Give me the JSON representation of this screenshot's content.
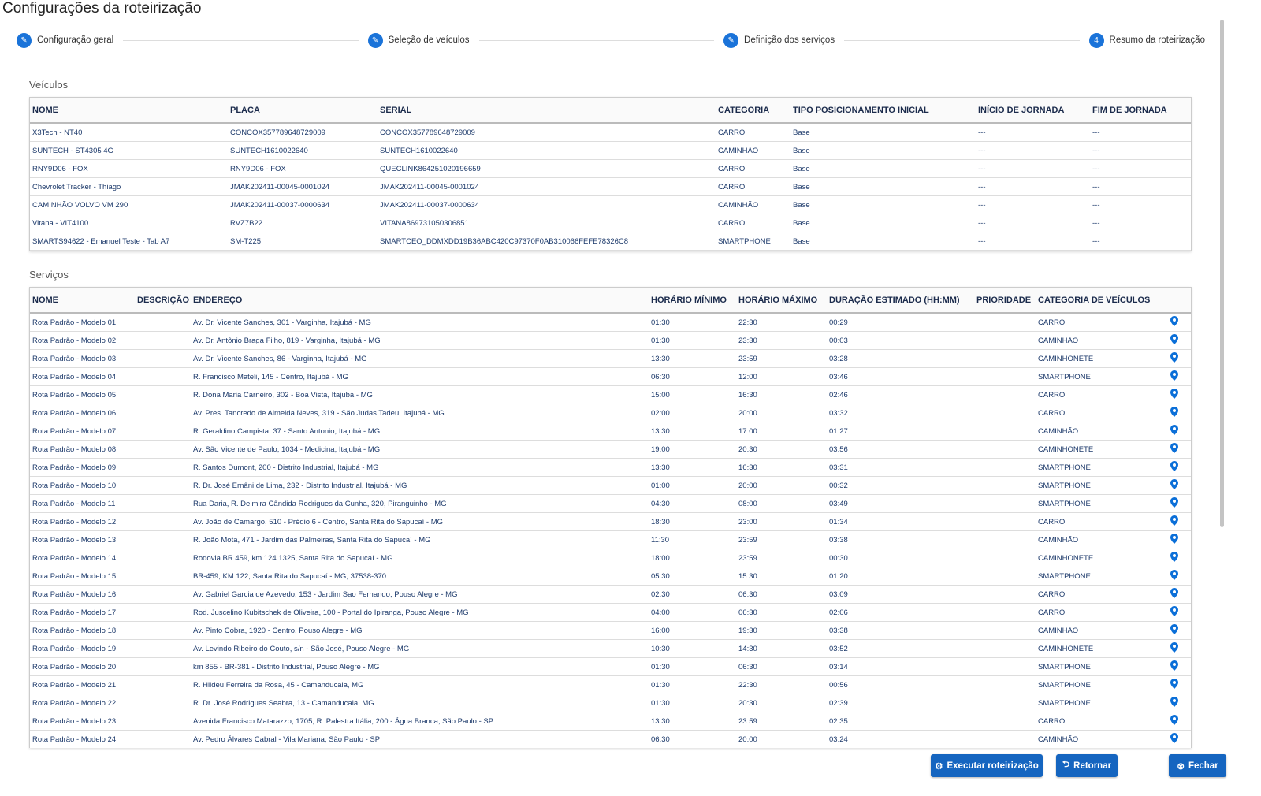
{
  "header": {
    "title": "Configurações da roteirização"
  },
  "steps": [
    {
      "label": "Configuração geral"
    },
    {
      "label": "Seleção de veículos"
    },
    {
      "label": "Definição dos serviços"
    },
    {
      "number": "4",
      "label": "Resumo da roteirização"
    }
  ],
  "vehicles": {
    "title": "Veículos",
    "columns": [
      "NOME",
      "PLACA",
      "SERIAL",
      "CATEGORIA",
      "TIPO POSICIONAMENTO INICIAL",
      "INÍCIO DE JORNADA",
      "FIM DE JORNADA"
    ],
    "rows": [
      [
        "X3Tech - NT40",
        "CONCOX357789648729009",
        "CONCOX357789648729009",
        "CARRO",
        "Base",
        "---",
        "---"
      ],
      [
        "SUNTECH - ST4305 4G",
        "SUNTECH1610022640",
        "SUNTECH1610022640",
        "CAMINHÃO",
        "Base",
        "---",
        "---"
      ],
      [
        "RNY9D06 - FOX",
        "RNY9D06 - FOX",
        "QUECLINK864251020196659",
        "CARRO",
        "Base",
        "---",
        "---"
      ],
      [
        "Chevrolet Tracker - Thiago",
        "JMAK202411-00045-0001024",
        "JMAK202411-00045-0001024",
        "CARRO",
        "Base",
        "---",
        "---"
      ],
      [
        "CAMINHÃO VOLVO VM 290",
        "JMAK202411-00037-0000634",
        "JMAK202411-00037-0000634",
        "CAMINHÃO",
        "Base",
        "---",
        "---"
      ],
      [
        "Vitana - VIT4100",
        "RVZ7B22",
        "VITANA869731050306851",
        "CARRO",
        "Base",
        "---",
        "---"
      ],
      [
        "SMARTS94622 - Emanuel Teste - Tab A7",
        "SM-T225",
        "SMARTCEO_DDMXDD19B36ABC420C97370F0AB310066FEFE78326C8",
        "SMARTPHONE",
        "Base",
        "---",
        "---"
      ]
    ]
  },
  "services": {
    "title": "Serviços",
    "columns": [
      "NOME",
      "DESCRIÇÃO",
      "ENDEREÇO",
      "HORÁRIO MÍNIMO",
      "HORÁRIO MÁXIMO",
      "DURAÇÃO ESTIMADO (HH:MM)",
      "PRIORIDADE",
      "CATEGORIA DE VEÍCULOS"
    ],
    "rows": [
      {
        "name": "Rota Padrão - Modelo 01",
        "address": "Av. Dr. Vicente Sanches, 301 - Varginha, Itajubá - MG",
        "min": "01:30",
        "max": "22:30",
        "duration": "00:29",
        "category": "CARRO"
      },
      {
        "name": "Rota Padrão - Modelo 02",
        "address": "Av. Dr. Antônio Braga Filho, 819 - Varginha, Itajubá - MG",
        "min": "01:30",
        "max": "23:30",
        "duration": "00:03",
        "category": "CAMINHÃO"
      },
      {
        "name": "Rota Padrão - Modelo 03",
        "address": "Av. Dr. Vicente Sanches, 86 - Varginha, Itajubá - MG",
        "min": "13:30",
        "max": "23:59",
        "duration": "03:28",
        "category": "CAMINHONETE"
      },
      {
        "name": "Rota Padrão - Modelo 04",
        "address": "R. Francisco Mateli, 145 - Centro, Itajubá - MG",
        "min": "06:30",
        "max": "12:00",
        "duration": "03:46",
        "category": "SMARTPHONE"
      },
      {
        "name": "Rota Padrão - Modelo 05",
        "address": "R. Dona Maria Carneiro, 302 - Boa Vista, Itajubá - MG",
        "min": "15:00",
        "max": "16:30",
        "duration": "02:46",
        "category": "CARRO"
      },
      {
        "name": "Rota Padrão - Modelo 06",
        "address": "Av. Pres. Tancredo de Almeida Neves, 319 - São Judas Tadeu, Itajubá - MG",
        "min": "02:00",
        "max": "20:00",
        "duration": "03:32",
        "category": "CARRO"
      },
      {
        "name": "Rota Padrão - Modelo 07",
        "address": "R. Geraldino Campista, 37 - Santo Antonio, Itajubá - MG",
        "min": "13:30",
        "max": "17:00",
        "duration": "01:27",
        "category": "CAMINHÃO"
      },
      {
        "name": "Rota Padrão - Modelo 08",
        "address": "Av. São Vicente de Paulo, 1034 - Medicina, Itajubá - MG",
        "min": "19:00",
        "max": "20:30",
        "duration": "03:56",
        "category": "CAMINHONETE"
      },
      {
        "name": "Rota Padrão - Modelo 09",
        "address": "R. Santos Dumont, 200 - Distrito Industrial, Itajubá - MG",
        "min": "13:30",
        "max": "16:30",
        "duration": "03:31",
        "category": "SMARTPHONE"
      },
      {
        "name": "Rota Padrão - Modelo 10",
        "address": "R. Dr. José Ernâni de Lima, 232 - Distrito Industrial, Itajubá - MG",
        "min": "01:00",
        "max": "20:00",
        "duration": "00:32",
        "category": "SMARTPHONE"
      },
      {
        "name": "Rota Padrão - Modelo 11",
        "address": "Rua Daria, R. Delmira Cândida Rodrigues da Cunha, 320, Piranguinho - MG",
        "min": "04:30",
        "max": "08:00",
        "duration": "03:49",
        "category": "SMARTPHONE"
      },
      {
        "name": "Rota Padrão - Modelo 12",
        "address": "Av. João de Camargo, 510 - Prédio 6 - Centro, Santa Rita do Sapucaí - MG",
        "min": "18:30",
        "max": "23:00",
        "duration": "01:34",
        "category": "CARRO"
      },
      {
        "name": "Rota Padrão - Modelo 13",
        "address": "R. João Mota, 471 - Jardim das Palmeiras, Santa Rita do Sapucaí - MG",
        "min": "11:30",
        "max": "23:59",
        "duration": "03:38",
        "category": "CAMINHÃO"
      },
      {
        "name": "Rota Padrão - Modelo 14",
        "address": "Rodovia BR 459, km 124 1325, Santa Rita do Sapucaí - MG",
        "min": "18:00",
        "max": "23:59",
        "duration": "00:30",
        "category": "CAMINHONETE"
      },
      {
        "name": "Rota Padrão - Modelo 15",
        "address": "BR-459, KM 122, Santa Rita do Sapucaí - MG, 37538-370",
        "min": "05:30",
        "max": "15:30",
        "duration": "01:20",
        "category": "SMARTPHONE"
      },
      {
        "name": "Rota Padrão - Modelo 16",
        "address": "Av. Gabriel Garcia de Azevedo, 153 - Jardim Sao Fernando, Pouso Alegre - MG",
        "min": "02:30",
        "max": "06:30",
        "duration": "03:09",
        "category": "CARRO"
      },
      {
        "name": "Rota Padrão - Modelo 17",
        "address": "Rod. Juscelino Kubitschek de Oliveira, 100 - Portal do Ipiranga, Pouso Alegre - MG",
        "min": "04:00",
        "max": "06:30",
        "duration": "02:06",
        "category": "CARRO"
      },
      {
        "name": "Rota Padrão - Modelo 18",
        "address": "Av. Pinto Cobra, 1920 - Centro, Pouso Alegre - MG",
        "min": "16:00",
        "max": "19:30",
        "duration": "03:38",
        "category": "CAMINHÃO"
      },
      {
        "name": "Rota Padrão - Modelo 19",
        "address": "Av. Levindo Ribeiro do Couto, s/n - São José, Pouso Alegre - MG",
        "min": "10:30",
        "max": "14:30",
        "duration": "03:52",
        "category": "CAMINHONETE"
      },
      {
        "name": "Rota Padrão - Modelo 20",
        "address": "km 855 - BR-381 - Distrito Industrial, Pouso Alegre - MG",
        "min": "01:30",
        "max": "06:30",
        "duration": "03:14",
        "category": "SMARTPHONE"
      },
      {
        "name": "Rota Padrão - Modelo 21",
        "address": "R. Hildeu Ferreira da Rosa, 45 - Camanducaia, MG",
        "min": "01:30",
        "max": "22:30",
        "duration": "00:56",
        "category": "SMARTPHONE"
      },
      {
        "name": "Rota Padrão - Modelo 22",
        "address": "R. Dr. José Rodrigues Seabra, 13 - Camanducaia, MG",
        "min": "01:30",
        "max": "20:30",
        "duration": "02:39",
        "category": "SMARTPHONE"
      },
      {
        "name": "Rota Padrão - Modelo 23",
        "address": "Avenida Francisco Matarazzo, 1705, R. Palestra Itália, 200 - Água Branca, São Paulo - SP",
        "min": "13:30",
        "max": "23:59",
        "duration": "02:35",
        "category": "CARRO"
      },
      {
        "name": "Rota Padrão - Modelo 24",
        "address": "Av. Pedro Álvares Cabral - Vila Mariana, São Paulo - SP",
        "min": "06:30",
        "max": "20:00",
        "duration": "03:24",
        "category": "CAMINHÃO"
      }
    ]
  },
  "buttons": {
    "run": "Executar roteirização",
    "back": "Retornar",
    "close": "Fechar"
  }
}
